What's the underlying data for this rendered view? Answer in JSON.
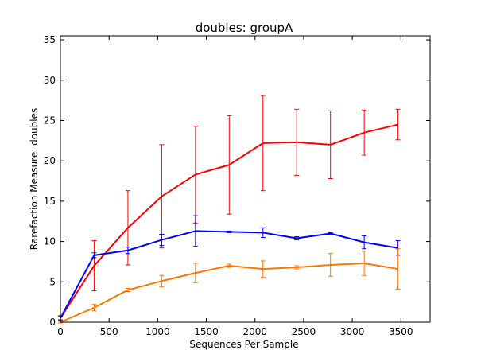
{
  "chart_data": {
    "type": "line",
    "title": "doubles: groupA",
    "xlabel": "Sequences Per Sample",
    "ylabel": "Rarefaction Measure: doubles",
    "xlim": [
      0,
      3800
    ],
    "ylim": [
      0,
      35.5
    ],
    "xticks": [
      0,
      500,
      1000,
      1500,
      2000,
      2500,
      3000,
      3500
    ],
    "yticks": [
      0,
      5,
      10,
      15,
      20,
      25,
      30,
      35
    ],
    "grid": false,
    "x": [
      0,
      347,
      694,
      1041,
      1388,
      1735,
      2082,
      2429,
      2776,
      3123,
      3470
    ],
    "series": [
      {
        "color": "#ff0000",
        "values": [
          0.5,
          7.0,
          11.7,
          15.6,
          18.3,
          19.5,
          22.2,
          22.3,
          22.0,
          23.5,
          24.5
        ],
        "error": [
          0.3,
          3.1,
          4.6,
          6.4,
          6.0,
          6.1,
          5.9,
          4.1,
          4.2,
          2.8,
          1.9
        ]
      },
      {
        "color": "#0000ff",
        "values": [
          0.5,
          8.3,
          8.9,
          10.2,
          11.3,
          11.2,
          11.1,
          10.4,
          11.0,
          9.9,
          9.2
        ],
        "error": [
          0.2,
          0.3,
          0.4,
          0.7,
          1.9,
          0.1,
          0.6,
          0.2,
          0.1,
          0.8,
          0.9
        ]
      },
      {
        "color": "#ff7700",
        "values": [
          0.0,
          1.8,
          4.0,
          5.1,
          6.1,
          7.0,
          6.6,
          6.8,
          7.1,
          7.3,
          6.6
        ],
        "error": [
          0.1,
          0.4,
          0.2,
          0.7,
          1.2,
          0.2,
          1.0,
          0.2,
          1.4,
          1.5,
          2.5
        ]
      }
    ]
  }
}
